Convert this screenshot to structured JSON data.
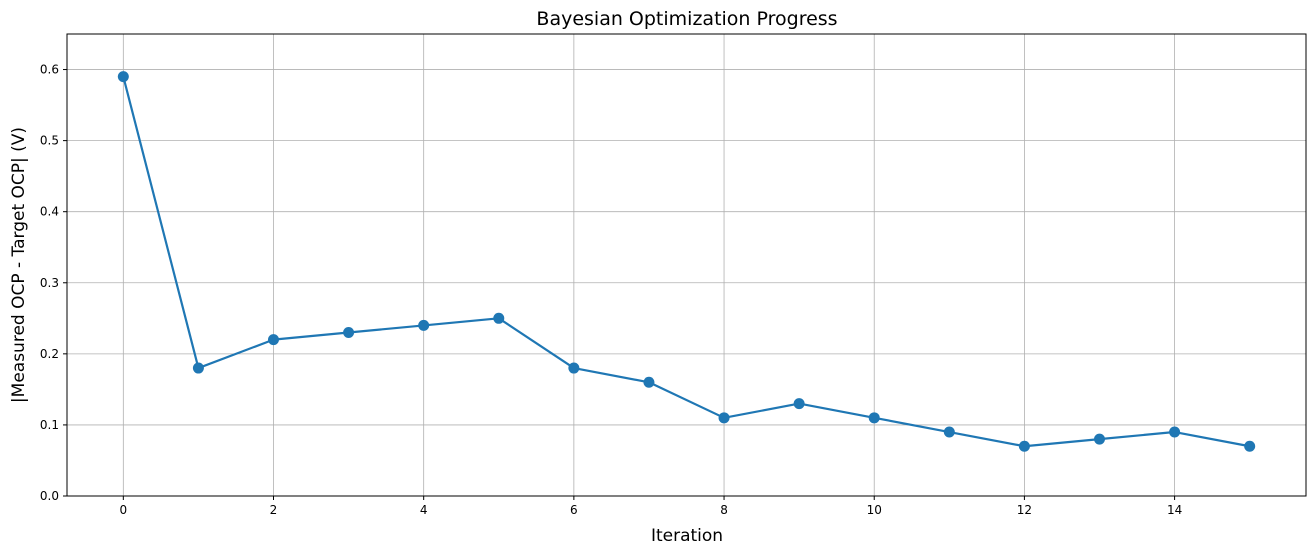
{
  "chart_data": {
    "type": "line",
    "title": "Bayesian Optimization Progress",
    "xlabel": "Iteration",
    "ylabel": "|Measured OCP - Target OCP| (V)",
    "x": [
      0,
      1,
      2,
      3,
      4,
      5,
      6,
      7,
      8,
      9,
      10,
      11,
      12,
      13,
      14,
      15
    ],
    "series": [
      {
        "values": [
          0.59,
          0.18,
          0.22,
          0.23,
          0.24,
          0.25,
          0.18,
          0.16,
          0.11,
          0.13,
          0.11,
          0.09,
          0.07,
          0.08,
          0.09,
          0.07
        ],
        "color": "#1f77b4",
        "marker": "circle"
      }
    ],
    "xlim": [
      -0.75,
      15.75
    ],
    "ylim": [
      0,
      0.65
    ],
    "xticks": [
      0,
      2,
      4,
      6,
      8,
      10,
      12,
      14
    ],
    "xtick_labels": [
      "0",
      "2",
      "4",
      "6",
      "8",
      "10",
      "12",
      "14"
    ],
    "yticks": [
      0.0,
      0.1,
      0.2,
      0.3,
      0.4,
      0.5,
      0.6
    ],
    "ytick_labels": [
      "0.0",
      "0.1",
      "0.2",
      "0.3",
      "0.4",
      "0.5",
      "0.6"
    ],
    "grid": true,
    "legend": "none"
  }
}
